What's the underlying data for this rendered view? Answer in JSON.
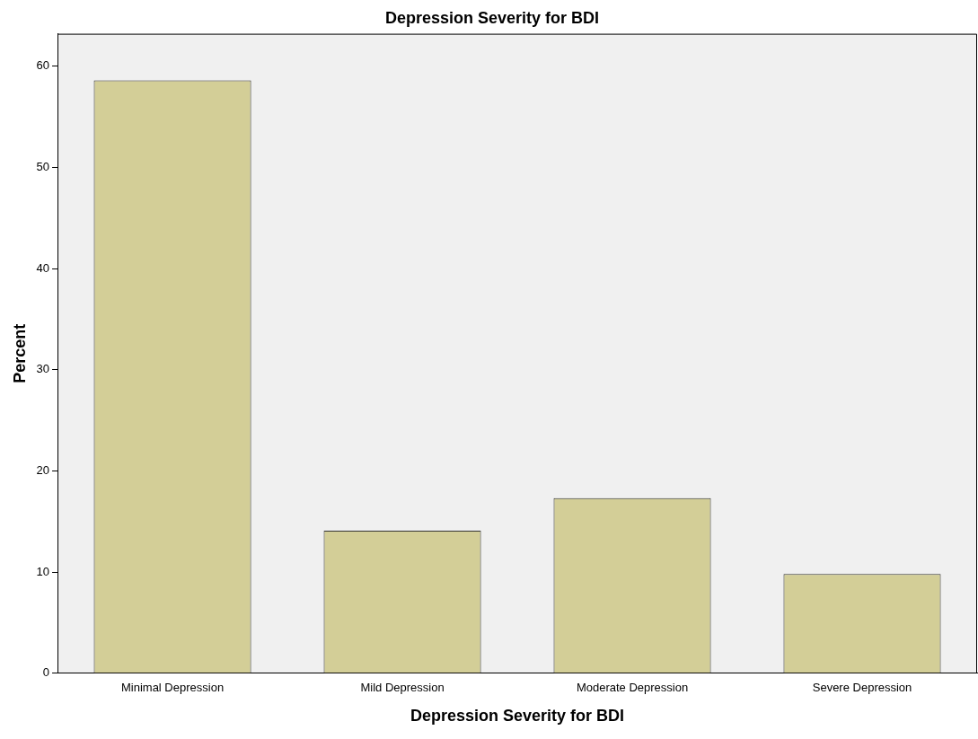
{
  "chart_data": {
    "type": "bar",
    "title": "Depression Severity for BDI",
    "xlabel": "Depression Severity for BDI",
    "ylabel": "Percent",
    "categories": [
      "Minimal Depression",
      "Mild Depression",
      "Moderate Depression",
      "Severe Depression"
    ],
    "values": [
      58.6,
      14.1,
      17.3,
      9.8
    ],
    "color": "#d3ce97",
    "ylim": [
      0,
      63.2
    ],
    "yticks": [
      0,
      10,
      20,
      30,
      40,
      50,
      60
    ],
    "grid": false,
    "legend": false
  }
}
